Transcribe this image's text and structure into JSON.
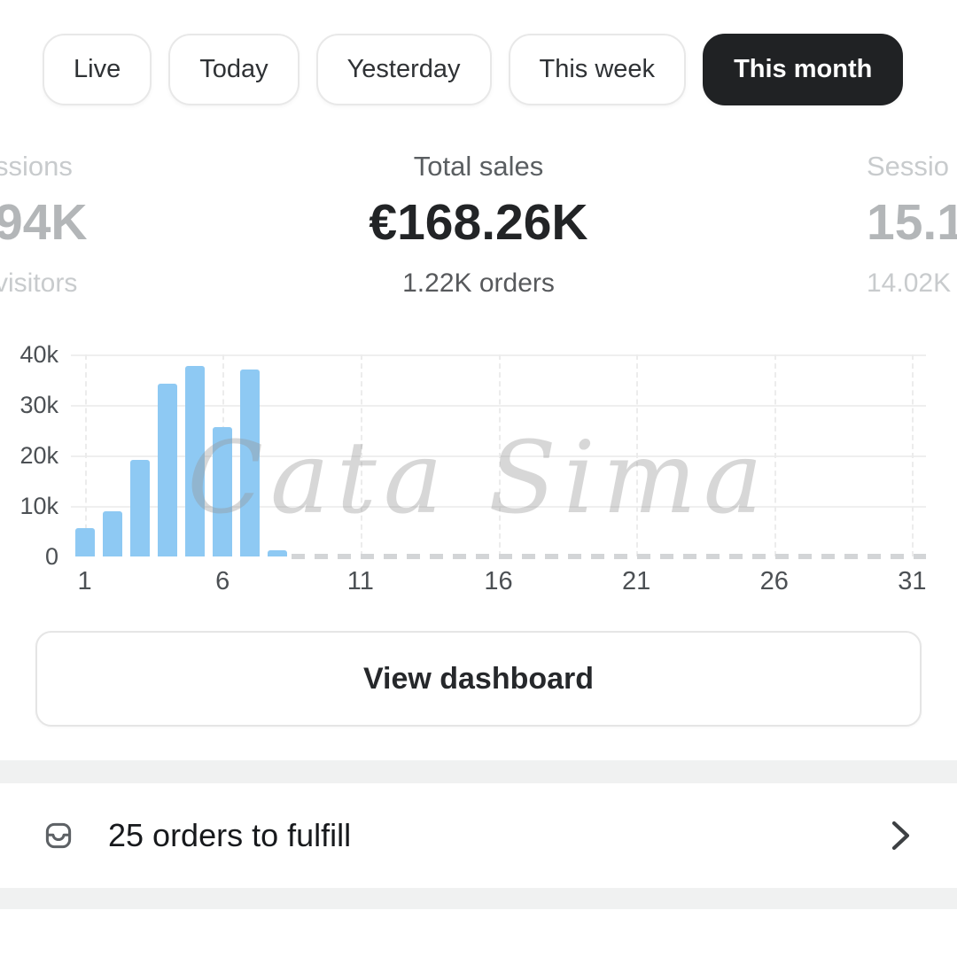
{
  "tabs": {
    "items": [
      {
        "label": "Live",
        "selected": false
      },
      {
        "label": "Today",
        "selected": false
      },
      {
        "label": "Yesterday",
        "selected": false
      },
      {
        "label": "This week",
        "selected": false
      },
      {
        "label": "This month",
        "selected": true
      }
    ]
  },
  "stats": {
    "left": {
      "label": "ssions",
      "value": "94K",
      "sub": "visitors"
    },
    "center": {
      "label": "Total sales",
      "value": "€168.26K",
      "sub": "1.22K orders"
    },
    "right": {
      "label": "Sessio",
      "value": "15.1",
      "sub": "14.02K"
    }
  },
  "watermark": {
    "text": "Cata Sima"
  },
  "chart_data": {
    "type": "bar",
    "x_unit": "day of month",
    "categories": [
      1,
      2,
      3,
      4,
      5,
      6,
      7,
      8,
      9,
      10,
      11,
      12,
      13,
      14,
      15,
      16,
      17,
      18,
      19,
      20,
      21,
      22,
      23,
      24,
      25,
      26,
      27,
      28,
      29,
      30,
      31
    ],
    "values": [
      5600,
      8900,
      19100,
      34300,
      37700,
      25700,
      37100,
      1200,
      0,
      0,
      0,
      0,
      0,
      0,
      0,
      0,
      0,
      0,
      0,
      0,
      0,
      0,
      0,
      0,
      0,
      0,
      0,
      0,
      0,
      0,
      0
    ],
    "ylim": [
      0,
      40000
    ],
    "ytick_values": [
      0,
      10000,
      20000,
      30000,
      40000
    ],
    "ytick_labels": [
      "0",
      "10k",
      "20k",
      "30k",
      "40k"
    ],
    "xtick_values": [
      1,
      6,
      11,
      16,
      21,
      26,
      31
    ],
    "grid": true,
    "legend": "none",
    "bar_color": "#8ec9f3",
    "dashed_zero_from_index": 8
  },
  "dashboard_button": {
    "label": "View dashboard"
  },
  "orders_row": {
    "label": "25 orders to fulfill"
  },
  "colors": {
    "selected_tab_bg": "#202224",
    "bar": "#8ec9f3",
    "faded_stat": "#b3b6b8",
    "divider": "#f0f1f1"
  }
}
